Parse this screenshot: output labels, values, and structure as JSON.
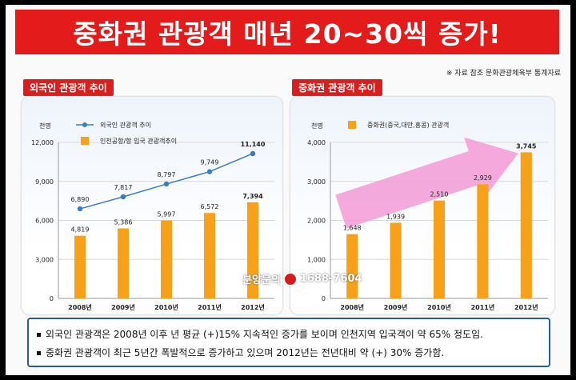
{
  "banner": {
    "title": "중화권 관광객 매년 20~30씩 증가!"
  },
  "source_note": "※ 자료 참조   문화관광체육부 통계자료",
  "left_panel_title": "외국인 관광객 추이",
  "right_panel_title": "중화권 관광객 추이",
  "watermark": {
    "text_left": "분양문의",
    "text_right": "1688-7604"
  },
  "notes": [
    "외국인 관광객은 2008년 이후 년 평균 (+)15% 지속적인 증가를 보이며 인천지역 입국객이 약 65% 정도임.",
    "중화권 관광객이 최근 5년간 폭발적으로 증가하고 있으며 2012년는 전년대비 약 (+) 30% 증가함."
  ],
  "colors": {
    "bar": "#f7a11a",
    "line": "#3a7cc1",
    "arrow": "#f39ad6",
    "banner": "#e31b1b"
  },
  "chart_data": [
    {
      "type": "bar",
      "unit_label": "천명",
      "categories": [
        "2008년",
        "2009년",
        "2010년",
        "2011년",
        "2012년"
      ],
      "series": [
        {
          "name": "외국인 관광객 추이",
          "kind": "line",
          "values": [
            6890,
            7817,
            8797,
            9749,
            11140
          ],
          "labels": [
            "6,890",
            "7,817",
            "8,797",
            "9,749",
            "11,140"
          ]
        },
        {
          "name": "인천공항/항 입국 관광객추이",
          "kind": "bar",
          "values": [
            4819,
            5386,
            5997,
            6572,
            7394
          ],
          "labels": [
            "4,819",
            "5,386",
            "5,997",
            "6,572",
            "7,394"
          ]
        }
      ],
      "ylim": [
        0,
        12000
      ],
      "yticks": [
        0,
        3000,
        6000,
        9000,
        12000
      ],
      "ytick_labels": [
        "0",
        "3,000",
        "6,000",
        "9,000",
        "12,000"
      ],
      "grid": true,
      "legend": "top-left"
    },
    {
      "type": "bar",
      "unit_label": "천명",
      "categories": [
        "2008년",
        "2009년",
        "2010년",
        "2011년",
        "2012년"
      ],
      "series": [
        {
          "name": "중화권(중국,대만,홍콩) 관광객",
          "kind": "bar",
          "values": [
            1648,
            1939,
            2510,
            2929,
            3745
          ],
          "labels": [
            "1,648",
            "1,939",
            "2,510",
            "2,929",
            "3,745"
          ]
        }
      ],
      "ylim": [
        0,
        4000
      ],
      "yticks": [
        0,
        1000,
        2000,
        3000,
        4000
      ],
      "ytick_labels": [
        "0",
        "1,000",
        "2,000",
        "3,000",
        "4,000"
      ],
      "grid": true,
      "legend": "top-left",
      "trend_arrow": true
    }
  ]
}
